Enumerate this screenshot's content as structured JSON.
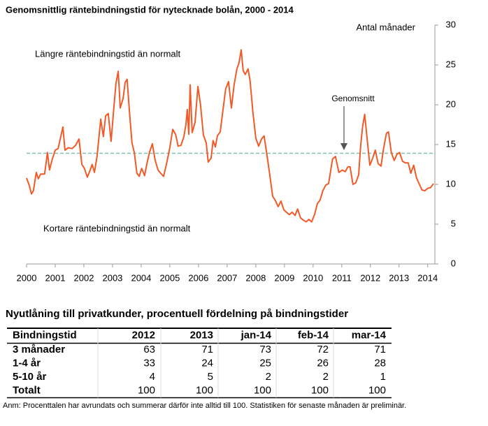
{
  "chart_data": {
    "type": "line",
    "title": "Genomsnittlig räntebindningstid för nytecknade bolån, 2000 - 2014",
    "ylabel": "Antal månader",
    "annotations": [
      "Längre räntebindningstid än normalt",
      "Kortare räntebindningstid än normalt",
      "Genomsnitt"
    ],
    "reference_line": 13.9,
    "color": "#f05a28",
    "reference_color": "#7fbfb0",
    "xlim": [
      2000,
      2014.25
    ],
    "xticks": [
      2000,
      2001,
      2002,
      2003,
      2004,
      2005,
      2006,
      2007,
      2008,
      2009,
      2010,
      2011,
      2012,
      2013,
      2014
    ],
    "ylim": [
      0,
      30
    ],
    "yticks": [
      0,
      5,
      10,
      15,
      20,
      25,
      30
    ],
    "y_axis_side": "right",
    "grid": false,
    "x": [
      2000.0,
      2000.1,
      2000.17,
      2000.24,
      2000.34,
      2000.41,
      2000.49,
      2000.63,
      2000.73,
      2000.8,
      2000.9,
      2001.0,
      2001.1,
      2001.27,
      2001.34,
      2001.46,
      2001.59,
      2001.71,
      2001.83,
      2001.93,
      2002.02,
      2002.12,
      2002.22,
      2002.29,
      2002.37,
      2002.46,
      2002.59,
      2002.68,
      2002.76,
      2002.85,
      2002.95,
      2003.05,
      2003.12,
      2003.2,
      2003.27,
      2003.37,
      2003.44,
      2003.51,
      2003.59,
      2003.68,
      2003.76,
      2003.85,
      2003.93,
      2004.02,
      2004.12,
      2004.2,
      2004.29,
      2004.39,
      2004.49,
      2004.59,
      2004.68,
      2004.78,
      2004.88,
      2005.0,
      2005.1,
      2005.2,
      2005.29,
      2005.39,
      2005.49,
      2005.56,
      2005.61,
      2005.66,
      2005.71,
      2005.78,
      2005.88,
      2005.98,
      2006.07,
      2006.17,
      2006.27,
      2006.34,
      2006.44,
      2006.51,
      2006.59,
      2006.66,
      2006.76,
      2006.85,
      2006.95,
      2007.05,
      2007.15,
      2007.24,
      2007.34,
      2007.41,
      2007.49,
      2007.56,
      2007.63,
      2007.73,
      2007.8,
      2007.9,
      2008.0,
      2008.1,
      2008.2,
      2008.29,
      2008.39,
      2008.49,
      2008.59,
      2008.68,
      2008.78,
      2008.88,
      2008.98,
      2009.07,
      2009.17,
      2009.27,
      2009.37,
      2009.46,
      2009.56,
      2009.66,
      2009.76,
      2009.85,
      2009.95,
      2010.05,
      2010.15,
      2010.24,
      2010.34,
      2010.44,
      2010.54,
      2010.68,
      2010.78,
      2010.9,
      2011.02,
      2011.12,
      2011.22,
      2011.29,
      2011.39,
      2011.49,
      2011.59,
      2011.66,
      2011.73,
      2011.8,
      2011.9,
      2011.98,
      2012.07,
      2012.17,
      2012.27,
      2012.37,
      2012.46,
      2012.56,
      2012.63,
      2012.73,
      2012.83,
      2012.93,
      2013.02,
      2013.12,
      2013.22,
      2013.32,
      2013.41,
      2013.51,
      2013.61,
      2013.71,
      2013.8,
      2013.9,
      2014.0,
      2014.1,
      2014.2
    ],
    "values": [
      10.8,
      9.8,
      8.8,
      9.2,
      11.5,
      10.7,
      11.3,
      11.3,
      14.0,
      11.8,
      13.2,
      14.3,
      14.5,
      17.2,
      14.3,
      14.6,
      14.5,
      14.9,
      15.7,
      12.5,
      12.0,
      10.9,
      11.8,
      12.5,
      11.5,
      13.5,
      18.2,
      16.0,
      18.6,
      18.9,
      15.4,
      19.8,
      22.7,
      24.2,
      19.6,
      20.8,
      22.8,
      23.2,
      19.2,
      15.2,
      14.0,
      11.4,
      11.0,
      12.0,
      11.1,
      12.6,
      14.0,
      15.1,
      13.0,
      11.8,
      11.4,
      11.0,
      12.5,
      14.6,
      16.9,
      16.3,
      14.8,
      14.9,
      16.0,
      17.5,
      19.4,
      16.3,
      22.5,
      16.5,
      17.8,
      22.3,
      20.0,
      16.2,
      15.2,
      12.8,
      13.3,
      15.5,
      14.7,
      16.1,
      16.6,
      19.2,
      22.0,
      22.9,
      19.6,
      22.4,
      24.5,
      25.2,
      26.9,
      24.3,
      23.8,
      24.5,
      23.0,
      19.0,
      15.8,
      14.8,
      15.7,
      16.1,
      13.7,
      11.2,
      8.5,
      8.0,
      7.2,
      7.9,
      6.8,
      6.5,
      6.2,
      6.5,
      6.1,
      6.9,
      5.8,
      5.5,
      5.3,
      5.6,
      5.3,
      6.2,
      7.6,
      8.0,
      9.2,
      9.9,
      10.1,
      13.2,
      13.5,
      11.5,
      11.8,
      11.6,
      12.2,
      12.2,
      10.0,
      10.2,
      11.2,
      14.9,
      17.3,
      18.8,
      15.2,
      12.4,
      13.2,
      14.3,
      12.6,
      12.3,
      14.5,
      16.4,
      16.6,
      14.0,
      13.0,
      13.8,
      14.0,
      12.9,
      12.7,
      12.7,
      11.4,
      12.4,
      10.8,
      10.0,
      9.3,
      9.2,
      9.5,
      9.6,
      10.1
    ]
  },
  "table": {
    "title": "Nyutlåning till privatkunder, procentuell fördelning på bindningstider",
    "columns": [
      "Bindningstid",
      "2012",
      "2013",
      "jan-14",
      "feb-14",
      "mar-14"
    ],
    "rows": [
      [
        "3 månader",
        63,
        71,
        73,
        72,
        71
      ],
      [
        "1-4 år",
        33,
        24,
        25,
        26,
        28
      ],
      [
        "5-10 år",
        4,
        5,
        2,
        2,
        1
      ],
      [
        "Totalt",
        100,
        100,
        100,
        100,
        100
      ]
    ]
  },
  "note": "Anm: Procenttalen har avrundats och summerar därför inte alltid till 100. Statistiken för senaste månaden är preliminär."
}
